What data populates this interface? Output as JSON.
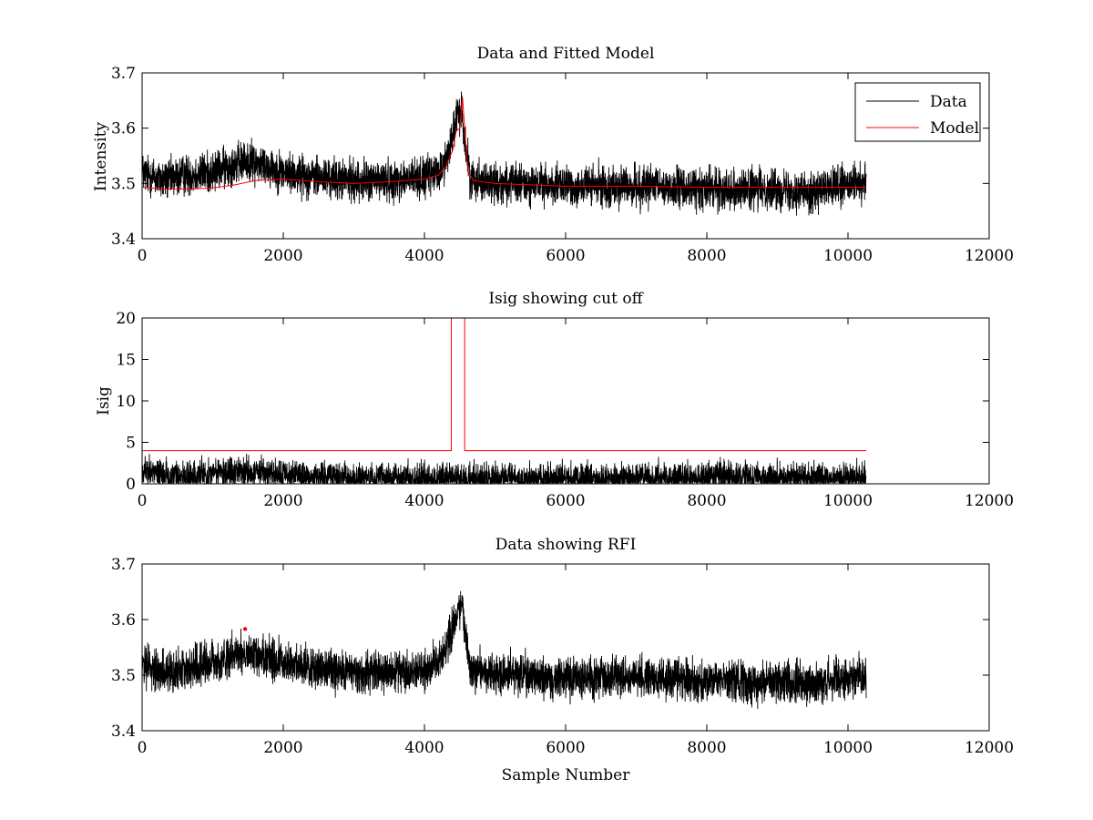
{
  "chart_data": [
    {
      "type": "line",
      "title": "Data and Fitted Model",
      "xlabel": "",
      "ylabel": "Intensity",
      "xlim": [
        0,
        12000
      ],
      "ylim": [
        3.4,
        3.7
      ],
      "xticks": [
        "0",
        "2000",
        "4000",
        "6000",
        "8000",
        "10000",
        "12000"
      ],
      "yticks": [
        "3.4",
        "3.5",
        "3.6",
        "3.7"
      ],
      "legend": {
        "position": "top-right",
        "entries": [
          "Data",
          "Model"
        ]
      },
      "series": [
        {
          "name": "Data",
          "color": "#000000",
          "style": "noisy",
          "noise": 0.018,
          "x": [
            0,
            300,
            600,
            1000,
            1300,
            1500,
            1700,
            2000,
            2500,
            3000,
            3500,
            4000,
            4200,
            4300,
            4400,
            4480,
            4530,
            4580,
            4650,
            5000,
            6000,
            7000,
            8000,
            9000,
            9500,
            10000,
            10260
          ],
          "values": [
            3.52,
            3.505,
            3.515,
            3.52,
            3.535,
            3.54,
            3.535,
            3.52,
            3.51,
            3.505,
            3.505,
            3.51,
            3.52,
            3.54,
            3.59,
            3.625,
            3.63,
            3.57,
            3.51,
            3.5,
            3.495,
            3.495,
            3.49,
            3.49,
            3.485,
            3.495,
            3.5
          ]
        },
        {
          "name": "Model",
          "color": "#ff0000",
          "style": "line",
          "x": [
            0,
            300,
            700,
            1000,
            1300,
            1600,
            2000,
            2500,
            3000,
            3500,
            4000,
            4200,
            4300,
            4400,
            4450,
            4500,
            4540,
            4580,
            4620,
            4700,
            5000,
            6000,
            7000,
            8000,
            9000,
            10260
          ],
          "values": [
            3.493,
            3.49,
            3.49,
            3.492,
            3.497,
            3.505,
            3.508,
            3.503,
            3.5,
            3.503,
            3.508,
            3.515,
            3.53,
            3.56,
            3.595,
            3.6,
            3.655,
            3.58,
            3.52,
            3.505,
            3.5,
            3.495,
            3.495,
            3.493,
            3.493,
            3.493
          ]
        }
      ]
    },
    {
      "type": "line",
      "title": "Isig showing cut off",
      "xlabel": "",
      "ylabel": "Isig",
      "xlim": [
        0,
        12000
      ],
      "ylim": [
        0,
        20
      ],
      "xticks": [
        "0",
        "2000",
        "4000",
        "6000",
        "8000",
        "10000",
        "12000"
      ],
      "yticks": [
        "0",
        "5",
        "10",
        "15",
        "20"
      ],
      "series": [
        {
          "name": "Isig",
          "color": "#000000",
          "style": "noisy",
          "noise": 0.9,
          "floor": 0,
          "x": [
            0,
            200,
            500,
            1000,
            1500,
            2000,
            3000,
            4000,
            5000,
            6000,
            7000,
            8000,
            9000,
            10000,
            10260
          ],
          "values": [
            1.6,
            1.4,
            0.8,
            1.2,
            1.5,
            1.0,
            0.7,
            0.7,
            0.6,
            0.6,
            0.7,
            0.8,
            0.8,
            0.7,
            0.6
          ]
        },
        {
          "name": "Cut off",
          "color": "#ff0000",
          "style": "line",
          "x": [
            0,
            4380,
            4380,
            4570,
            4570,
            10260
          ],
          "values": [
            4,
            4,
            20,
            20,
            4,
            4
          ]
        }
      ]
    },
    {
      "type": "line",
      "title": "Data showing RFI",
      "xlabel": "Sample Number",
      "ylabel": "",
      "xlim": [
        0,
        12000
      ],
      "ylim": [
        3.4,
        3.7
      ],
      "xticks": [
        "0",
        "2000",
        "4000",
        "6000",
        "8000",
        "10000",
        "12000"
      ],
      "yticks": [
        "3.4",
        "3.5",
        "3.6",
        "3.7"
      ],
      "series": [
        {
          "name": "Data",
          "color": "#000000",
          "style": "noisy",
          "noise": 0.018,
          "x": [
            0,
            300,
            600,
            1000,
            1300,
            1500,
            1700,
            2000,
            2500,
            3000,
            3500,
            4000,
            4200,
            4300,
            4400,
            4480,
            4530,
            4580,
            4650,
            5000,
            6000,
            7000,
            8000,
            9000,
            9500,
            10000,
            10260
          ],
          "values": [
            3.52,
            3.505,
            3.515,
            3.52,
            3.535,
            3.54,
            3.535,
            3.52,
            3.51,
            3.505,
            3.505,
            3.51,
            3.52,
            3.54,
            3.59,
            3.625,
            3.63,
            3.57,
            3.51,
            3.5,
            3.495,
            3.495,
            3.49,
            3.49,
            3.485,
            3.495,
            3.5
          ]
        },
        {
          "name": "RFI",
          "color": "#ff0000",
          "style": "points",
          "x": [
            1460
          ],
          "values": [
            3.583
          ]
        }
      ]
    }
  ]
}
